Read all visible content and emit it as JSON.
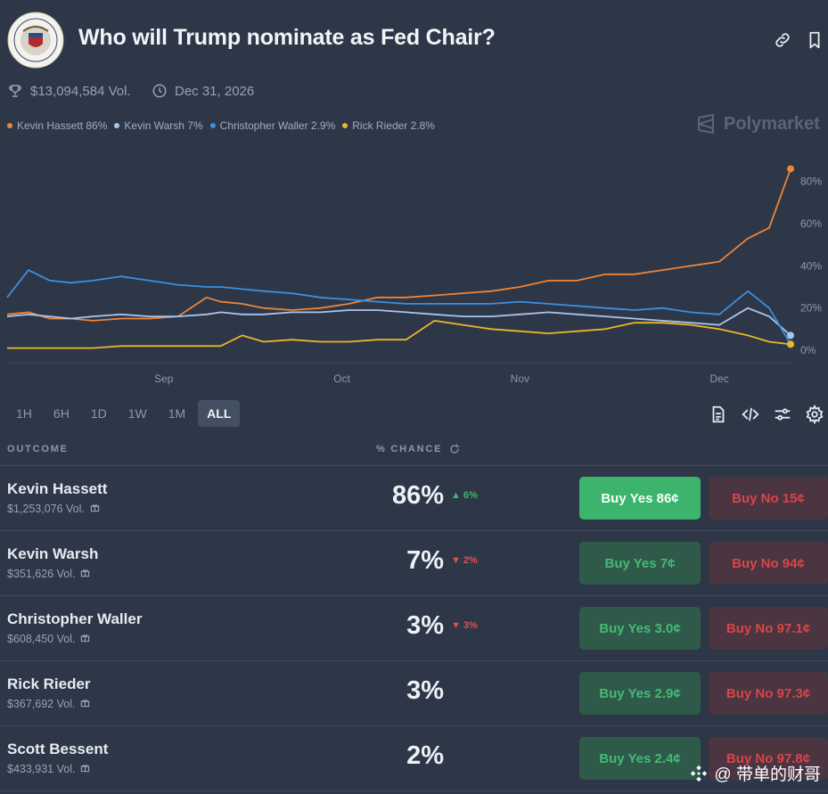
{
  "header": {
    "title": "Who will Trump nominate as Fed Chair?",
    "volume": "$13,094,584 Vol.",
    "end_date": "Dec 31, 2026"
  },
  "legend": [
    {
      "label": "Kevin Hassett 86%",
      "color": "#ee8438"
    },
    {
      "label": "Kevin Warsh 7%",
      "color": "#a9c5ec"
    },
    {
      "label": "Christopher Waller 2.9%",
      "color": "#3d8fe0"
    },
    {
      "label": "Rick Rieder 2.8%",
      "color": "#eeb42b"
    }
  ],
  "brand": "Polymarket",
  "chart_data": {
    "type": "line",
    "x_ticks": [
      "Sep",
      "Oct",
      "Nov",
      "Dec"
    ],
    "y_ticks": [
      "0%",
      "20%",
      "40%",
      "60%",
      "80%"
    ],
    "ylim": [
      0,
      90
    ],
    "x": [
      0,
      3,
      6,
      9,
      12,
      16,
      20,
      24,
      28,
      30,
      33,
      36,
      40,
      44,
      48,
      52,
      56,
      60,
      64,
      68,
      72,
      76,
      80,
      84,
      88,
      92,
      96,
      100,
      104,
      107,
      110
    ],
    "series": [
      {
        "name": "Kevin Hassett",
        "color": "#ee8438",
        "values": [
          17,
          18,
          15,
          15,
          14,
          15,
          15,
          16,
          25,
          23,
          22,
          20,
          19,
          20,
          22,
          25,
          25,
          26,
          27,
          28,
          30,
          33,
          33,
          36,
          36,
          38,
          40,
          42,
          53,
          58,
          86
        ]
      },
      {
        "name": "Kevin Warsh",
        "color": "#a9c5ec",
        "values": [
          16,
          17,
          16,
          15,
          16,
          17,
          16,
          16,
          17,
          18,
          17,
          17,
          18,
          18,
          19,
          19,
          18,
          17,
          16,
          16,
          17,
          18,
          17,
          16,
          15,
          14,
          13,
          12,
          20,
          16,
          7
        ]
      },
      {
        "name": "Christopher Waller",
        "color": "#3d8fe0",
        "values": [
          25,
          38,
          33,
          32,
          33,
          35,
          33,
          31,
          30,
          30,
          29,
          28,
          27,
          25,
          24,
          23,
          22,
          22,
          22,
          22,
          23,
          22,
          21,
          20,
          19,
          20,
          18,
          17,
          28,
          20,
          2.9
        ]
      },
      {
        "name": "Rick Rieder",
        "color": "#eeb42b",
        "values": [
          1,
          1,
          1,
          1,
          1,
          2,
          2,
          2,
          2,
          2,
          7,
          4,
          5,
          4,
          4,
          5,
          5,
          14,
          12,
          10,
          9,
          8,
          9,
          10,
          13,
          13,
          12,
          10,
          7,
          4,
          2.8
        ]
      }
    ]
  },
  "time_ranges": [
    "1H",
    "6H",
    "1D",
    "1W",
    "1M",
    "ALL"
  ],
  "active_range": "ALL",
  "table": {
    "outcome_header": "OUTCOME",
    "chance_header": "% CHANCE",
    "rows": [
      {
        "name": "Kevin Hassett",
        "volume": "$1,253,076 Vol.",
        "chance": "86%",
        "change": "6%",
        "change_dir": "up",
        "buy_yes": "Buy Yes 86¢",
        "buy_no": "Buy No 15¢"
      },
      {
        "name": "Kevin Warsh",
        "volume": "$351,626 Vol.",
        "chance": "7%",
        "change": "2%",
        "change_dir": "down",
        "buy_yes": "Buy Yes 7¢",
        "buy_no": "Buy No 94¢"
      },
      {
        "name": "Christopher Waller",
        "volume": "$608,450 Vol.",
        "chance": "3%",
        "change": "3%",
        "change_dir": "down",
        "buy_yes": "Buy Yes 3.0¢",
        "buy_no": "Buy No 97.1¢"
      },
      {
        "name": "Rick Rieder",
        "volume": "$367,692 Vol.",
        "chance": "3%",
        "change": "",
        "change_dir": "none",
        "buy_yes": "Buy Yes 2.9¢",
        "buy_no": "Buy No 97.3¢"
      },
      {
        "name": "Scott Bessent",
        "volume": "$433,931 Vol.",
        "chance": "2%",
        "change": "",
        "change_dir": "none",
        "buy_yes": "Buy Yes 2.4¢",
        "buy_no": "Buy No 97.8¢"
      }
    ]
  },
  "watermark": "@ 带单的财哥"
}
